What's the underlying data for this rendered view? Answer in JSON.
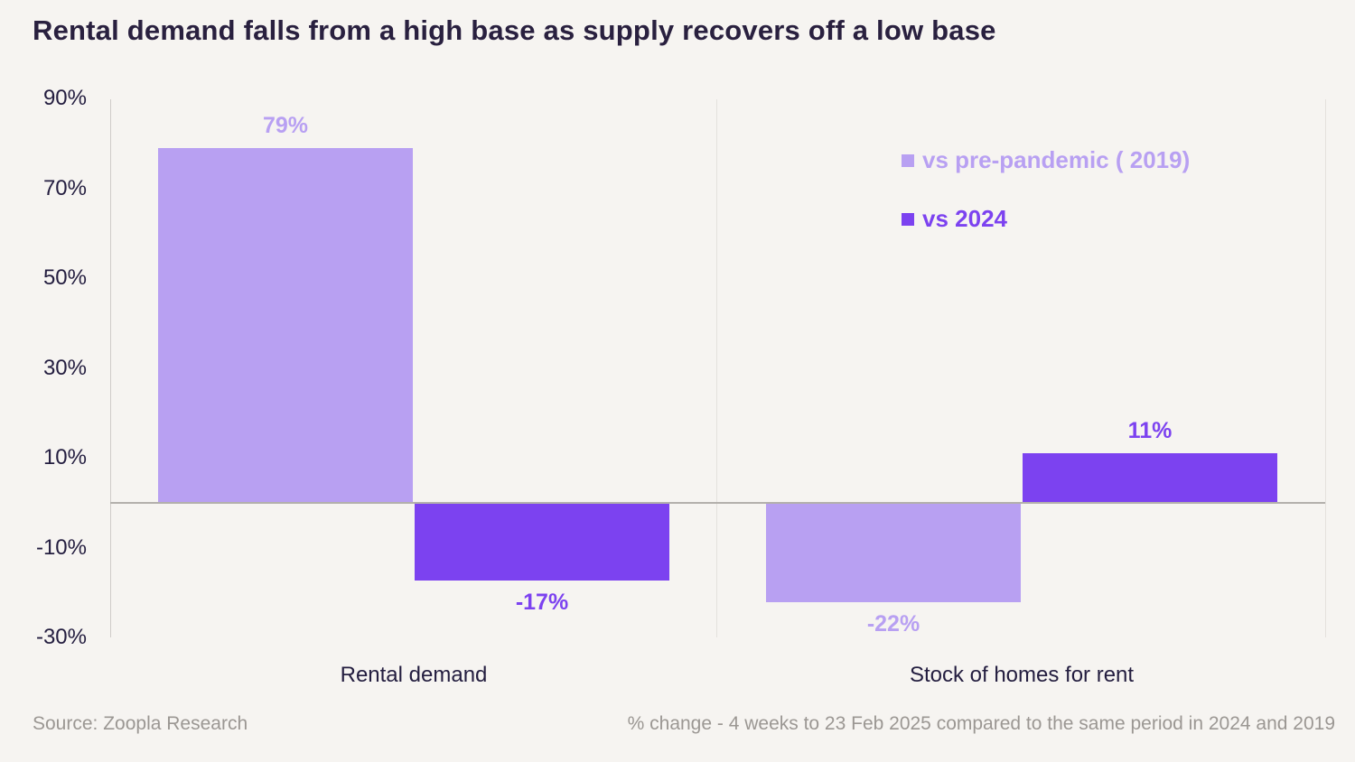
{
  "title": "Rental demand falls from a high base as supply recovers off a low base",
  "footer": {
    "source": "Source: Zoopla Research",
    "note": "% change - 4 weeks to 23 Feb 2025 compared to the same period in 2024 and 2019"
  },
  "colors": {
    "background": "#f6f4f1",
    "title_text": "#29203f",
    "axis_text": "#231d3f",
    "muted_text": "#9b9793",
    "series_light": "#b8a0f2",
    "series_dark": "#7c42f0",
    "zero_line": "#b3b0ac",
    "axis_line": "#cfccc8",
    "grid_line": "#e4e1dd"
  },
  "chart_data": {
    "type": "bar",
    "categories": [
      "Rental demand",
      "Stock of homes for rent"
    ],
    "series": [
      {
        "name": "vs pre-pandemic ( 2019)",
        "values": [
          79,
          -22
        ],
        "color": "#b8a0f2"
      },
      {
        "name": "vs 2024",
        "values": [
          -17,
          11
        ],
        "color": "#7c42f0"
      }
    ],
    "data_labels": [
      [
        "79%",
        "-22%"
      ],
      [
        "-17%",
        "11%"
      ]
    ],
    "value_suffix": "%",
    "y_ticks": [
      90,
      70,
      50,
      30,
      10,
      -10,
      -30
    ],
    "ylim": [
      -30,
      90
    ],
    "grid": "off",
    "legend_position": "top-right",
    "xlabel": "",
    "ylabel": ""
  }
}
